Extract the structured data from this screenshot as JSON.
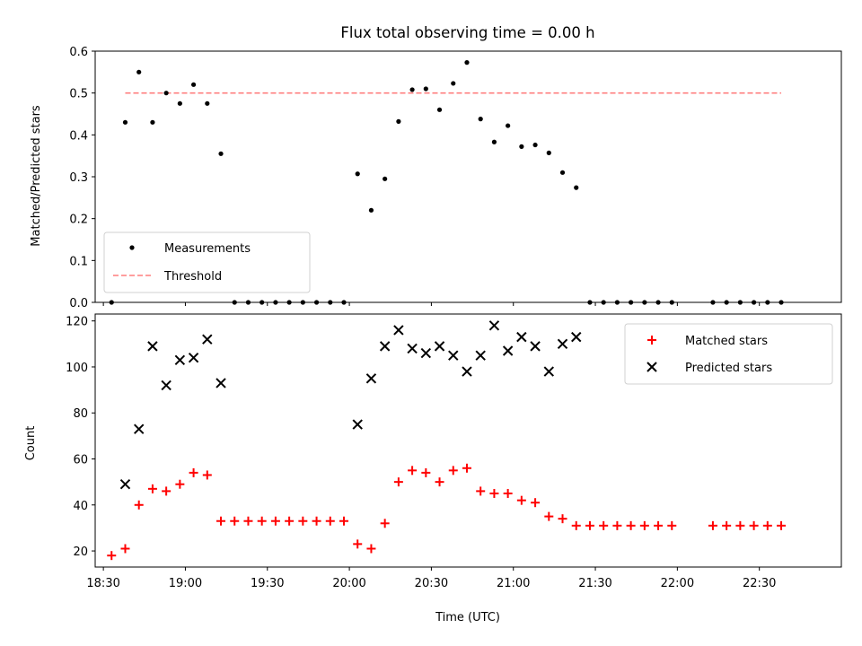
{
  "chart_data": [
    {
      "type": "scatter",
      "title": "Flux total observing time = 0.00 h",
      "xlabel": "",
      "ylabel": "Matched/Predicted stars",
      "ylim": [
        0,
        0.6
      ],
      "yticks": [
        "0.0",
        "0.1",
        "0.2",
        "0.3",
        "0.4",
        "0.5",
        "0.6"
      ],
      "legend_position": "lower-left",
      "series": [
        {
          "name": "Measurements",
          "kind": "scatter",
          "color": "#000000",
          "x": [
            "18:33",
            "18:38",
            "18:43",
            "18:48",
            "18:53",
            "18:58",
            "19:03",
            "19:08",
            "19:13",
            "19:18",
            "19:23",
            "19:28",
            "19:33",
            "19:38",
            "19:43",
            "19:48",
            "19:53",
            "19:58",
            "20:03",
            "20:08",
            "20:13",
            "20:18",
            "20:23",
            "20:28",
            "20:33",
            "20:38",
            "20:43",
            "20:48",
            "20:53",
            "20:58",
            "21:03",
            "21:08",
            "21:13",
            "21:18",
            "21:23",
            "21:28",
            "21:33",
            "21:38",
            "21:43",
            "21:48",
            "21:53",
            "21:58",
            "22:13",
            "22:18",
            "22:23",
            "22:28",
            "22:33",
            "22:38"
          ],
          "y": [
            0.0,
            0.43,
            0.55,
            0.43,
            0.5,
            0.475,
            0.52,
            0.475,
            0.355,
            0.0,
            0.0,
            0.0,
            0.0,
            0.0,
            0.0,
            0.0,
            0.0,
            0.0,
            0.307,
            0.22,
            0.295,
            0.432,
            0.508,
            0.51,
            0.46,
            0.523,
            0.573,
            0.438,
            0.383,
            0.422,
            0.372,
            0.376,
            0.357,
            0.31,
            0.274,
            0.0,
            0.0,
            0.0,
            0.0,
            0.0,
            0.0,
            0.0,
            0.0,
            0.0,
            0.0,
            0.0,
            0.0,
            0.0
          ]
        },
        {
          "name": "Threshold",
          "kind": "line",
          "style": "dashed",
          "color": "#ff7f7f",
          "x": [
            "18:38",
            "22:38"
          ],
          "y": [
            0.5,
            0.5
          ]
        }
      ]
    },
    {
      "type": "scatter",
      "xlabel": "Time (UTC)",
      "ylabel": "Count",
      "ylim": [
        13,
        123
      ],
      "yticks": [
        "20",
        "40",
        "60",
        "80",
        "100",
        "120"
      ],
      "xlim": [
        "18:27",
        "23:00"
      ],
      "xticks": [
        "18:30",
        "19:00",
        "19:30",
        "20:00",
        "20:30",
        "21:00",
        "21:30",
        "22:00",
        "22:30"
      ],
      "legend_position": "upper-right",
      "series": [
        {
          "name": "Matched stars",
          "marker": "+",
          "color": "#ff0000",
          "x": [
            "18:33",
            "18:38",
            "18:43",
            "18:48",
            "18:53",
            "18:58",
            "19:03",
            "19:08",
            "19:13",
            "19:18",
            "19:23",
            "19:28",
            "19:33",
            "19:38",
            "19:43",
            "19:48",
            "19:53",
            "19:58",
            "20:03",
            "20:08",
            "20:13",
            "20:18",
            "20:23",
            "20:28",
            "20:33",
            "20:38",
            "20:43",
            "20:48",
            "20:53",
            "20:58",
            "21:03",
            "21:08",
            "21:13",
            "21:18",
            "21:23",
            "21:28",
            "21:33",
            "21:38",
            "21:43",
            "21:48",
            "21:53",
            "21:58",
            "22:13",
            "22:18",
            "22:23",
            "22:28",
            "22:33",
            "22:38"
          ],
          "y": [
            18,
            21,
            40,
            47,
            46,
            49,
            54,
            53,
            33,
            33,
            33,
            33,
            33,
            33,
            33,
            33,
            33,
            33,
            23,
            21,
            32,
            50,
            55,
            54,
            50,
            55,
            56,
            46,
            45,
            45,
            42,
            41,
            35,
            34,
            31,
            31,
            31,
            31,
            31,
            31,
            31,
            31,
            31,
            31,
            31,
            31,
            31,
            31
          ]
        },
        {
          "name": "Predicted stars",
          "marker": "x",
          "color": "#000000",
          "x": [
            "18:38",
            "18:43",
            "18:48",
            "18:53",
            "18:58",
            "19:03",
            "19:08",
            "19:13",
            "20:03",
            "20:08",
            "20:13",
            "20:18",
            "20:23",
            "20:28",
            "20:33",
            "20:38",
            "20:43",
            "20:48",
            "20:53",
            "20:58",
            "21:03",
            "21:08",
            "21:13",
            "21:18",
            "21:23"
          ],
          "y": [
            49,
            73,
            109,
            92,
            103,
            104,
            112,
            93,
            75,
            95,
            109,
            116,
            108,
            106,
            109,
            105,
            98,
            105,
            118,
            107,
            113,
            109,
            98,
            110,
            113
          ]
        }
      ]
    }
  ]
}
